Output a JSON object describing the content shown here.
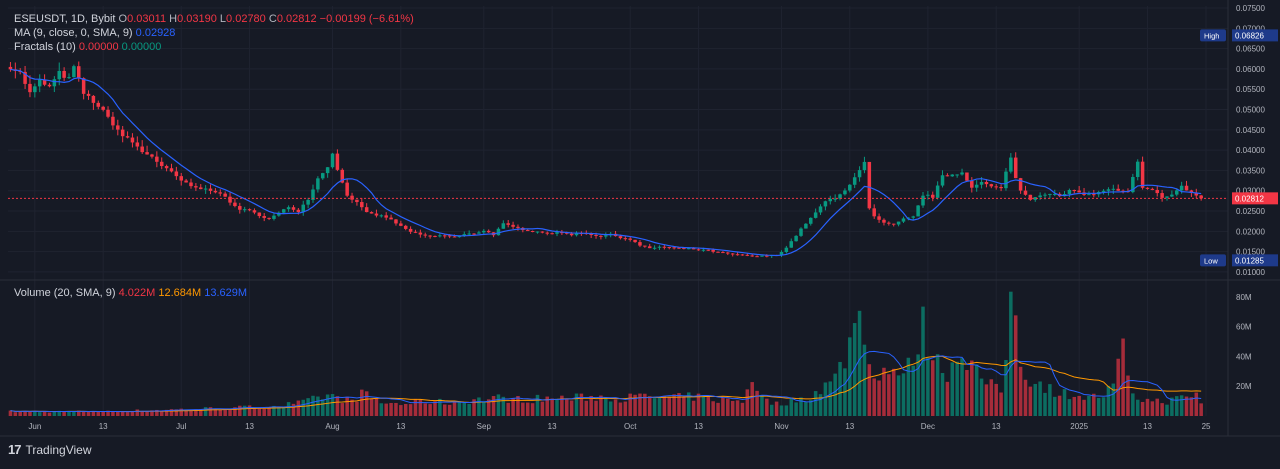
{
  "legend": {
    "symbol": "ESEUSDT, 1D, Bybit",
    "o_label": "O",
    "o_val": "0.03011",
    "h_label": "H",
    "h_val": "0.03190",
    "l_label": "L",
    "l_val": "0.02780",
    "c_label": "C",
    "c_val": "0.02812",
    "change": "−0.00199 (−6.61%)",
    "ma_label": "MA (9, close, 0, SMA, 9)",
    "ma_val": "0.02928",
    "fractals_label": "Fractals (10)",
    "fractals_up": "0.00000",
    "fractals_down": "0.00000",
    "volume_label": "Volume (20, SMA, 9)",
    "vol_val": "4.022M",
    "vol_sma20": "12.684M",
    "vol_sma9": "13.629M"
  },
  "price_axis": {
    "ticks": [
      "0.07500",
      "0.07000",
      "0.06500",
      "0.06000",
      "0.05500",
      "0.05000",
      "0.04500",
      "0.04000",
      "0.03500",
      "0.03000",
      "0.02500",
      "0.02000",
      "0.01500",
      "0.01000"
    ],
    "high_label": "High",
    "high_value": "0.06826",
    "low_label": "Low",
    "low_value": "0.01285",
    "last_value": "0.02812"
  },
  "volume_axis": {
    "ticks": [
      "80M",
      "60M",
      "40M",
      "20M"
    ]
  },
  "time_axis": {
    "labels": [
      "Jun",
      "13",
      "Jul",
      "13",
      "Aug",
      "13",
      "Sep",
      "13",
      "Oct",
      "13",
      "Nov",
      "13",
      "Dec",
      "13",
      "2025",
      "13",
      "25"
    ],
    "label_days": [
      5,
      19,
      35,
      49,
      66,
      80,
      97,
      111,
      127,
      141,
      158,
      172,
      188,
      202,
      219,
      233,
      245
    ]
  },
  "colors": {
    "up": "#089981",
    "down": "#f23645",
    "ma": "#2962ff",
    "vol_sma20": "#ff9800",
    "vol_sma9": "#2962ff",
    "bg": "#161a25",
    "grid": "#1f2330"
  },
  "footer": {
    "brand": "TradingView",
    "brand_mark": "17"
  },
  "chart_data": {
    "type": "candlestick",
    "title": "ESEUSDT, 1D, Bybit",
    "x_start": "2024-06-01",
    "price_range": [
      0.0085,
      0.0755
    ],
    "volume_range": [
      0,
      90
    ],
    "close_anchors": [
      [
        0,
        0.0605
      ],
      [
        2,
        0.059
      ],
      [
        4,
        0.054
      ],
      [
        6,
        0.057
      ],
      [
        8,
        0.0555
      ],
      [
        10,
        0.059
      ],
      [
        12,
        0.0575
      ],
      [
        13,
        0.0605
      ],
      [
        15,
        0.054
      ],
      [
        17,
        0.052
      ],
      [
        19,
        0.0495
      ],
      [
        21,
        0.0465
      ],
      [
        23,
        0.0435
      ],
      [
        25,
        0.042
      ],
      [
        27,
        0.0395
      ],
      [
        29,
        0.0385
      ],
      [
        31,
        0.036
      ],
      [
        33,
        0.0345
      ],
      [
        35,
        0.0325
      ],
      [
        37,
        0.031
      ],
      [
        39,
        0.0305
      ],
      [
        41,
        0.0302
      ],
      [
        43,
        0.0295
      ],
      [
        45,
        0.027
      ],
      [
        47,
        0.0255
      ],
      [
        49,
        0.025
      ],
      [
        51,
        0.024
      ],
      [
        53,
        0.023
      ],
      [
        55,
        0.0245
      ],
      [
        57,
        0.026
      ],
      [
        59,
        0.025
      ],
      [
        61,
        0.028
      ],
      [
        63,
        0.033
      ],
      [
        65,
        0.036
      ],
      [
        66,
        0.0395
      ],
      [
        67,
        0.035
      ],
      [
        69,
        0.029
      ],
      [
        71,
        0.027
      ],
      [
        73,
        0.0245
      ],
      [
        75,
        0.024
      ],
      [
        77,
        0.0235
      ],
      [
        79,
        0.022
      ],
      [
        81,
        0.0205
      ],
      [
        83,
        0.0195
      ],
      [
        85,
        0.0188
      ],
      [
        87,
        0.0188
      ],
      [
        89,
        0.019
      ],
      [
        91,
        0.0185
      ],
      [
        93,
        0.0192
      ],
      [
        95,
        0.0195
      ],
      [
        97,
        0.0202
      ],
      [
        99,
        0.0192
      ],
      [
        101,
        0.0218
      ],
      [
        103,
        0.021
      ],
      [
        105,
        0.0205
      ],
      [
        107,
        0.02
      ],
      [
        109,
        0.0198
      ],
      [
        111,
        0.0195
      ],
      [
        113,
        0.0197
      ],
      [
        115,
        0.0192
      ],
      [
        117,
        0.0197
      ],
      [
        119,
        0.0192
      ],
      [
        121,
        0.0188
      ],
      [
        123,
        0.0192
      ],
      [
        125,
        0.0185
      ],
      [
        127,
        0.018
      ],
      [
        129,
        0.0165
      ],
      [
        131,
        0.0158
      ],
      [
        133,
        0.0162
      ],
      [
        135,
        0.016
      ],
      [
        137,
        0.0158
      ],
      [
        139,
        0.0157
      ],
      [
        141,
        0.0155
      ],
      [
        143,
        0.0153
      ],
      [
        145,
        0.0148
      ],
      [
        147,
        0.0145
      ],
      [
        149,
        0.0142
      ],
      [
        151,
        0.014
      ],
      [
        153,
        0.0138
      ],
      [
        155,
        0.014
      ],
      [
        157,
        0.0141
      ],
      [
        159,
        0.016
      ],
      [
        161,
        0.019
      ],
      [
        163,
        0.022
      ],
      [
        165,
        0.0245
      ],
      [
        167,
        0.0275
      ],
      [
        169,
        0.028
      ],
      [
        171,
        0.03
      ],
      [
        173,
        0.0335
      ],
      [
        175,
        0.037
      ],
      [
        176,
        0.0255
      ],
      [
        177,
        0.0235
      ],
      [
        179,
        0.022
      ],
      [
        181,
        0.0215
      ],
      [
        183,
        0.023
      ],
      [
        185,
        0.0235
      ],
      [
        187,
        0.029
      ],
      [
        189,
        0.0285
      ],
      [
        191,
        0.0335
      ],
      [
        193,
        0.034
      ],
      [
        195,
        0.0345
      ],
      [
        197,
        0.031
      ],
      [
        199,
        0.032
      ],
      [
        201,
        0.031
      ],
      [
        203,
        0.0305
      ],
      [
        205,
        0.0385
      ],
      [
        206,
        0.033
      ],
      [
        207,
        0.03
      ],
      [
        209,
        0.028
      ],
      [
        211,
        0.029
      ],
      [
        213,
        0.0295
      ],
      [
        215,
        0.0285
      ],
      [
        217,
        0.03
      ],
      [
        219,
        0.0295
      ],
      [
        221,
        0.029
      ],
      [
        223,
        0.0295
      ],
      [
        225,
        0.0305
      ],
      [
        227,
        0.03
      ],
      [
        229,
        0.0295
      ],
      [
        231,
        0.037
      ],
      [
        232,
        0.0305
      ],
      [
        234,
        0.03
      ],
      [
        236,
        0.0285
      ],
      [
        238,
        0.029
      ],
      [
        240,
        0.031
      ],
      [
        242,
        0.0295
      ],
      [
        244,
        0.0281
      ]
    ],
    "volume_anchors": [
      [
        0,
        3
      ],
      [
        10,
        3
      ],
      [
        20,
        3
      ],
      [
        30,
        4
      ],
      [
        40,
        5
      ],
      [
        50,
        6
      ],
      [
        55,
        7
      ],
      [
        60,
        9
      ],
      [
        63,
        12
      ],
      [
        65,
        14
      ],
      [
        67,
        12
      ],
      [
        70,
        10
      ],
      [
        72,
        15
      ],
      [
        74,
        12
      ],
      [
        76,
        9
      ],
      [
        80,
        8
      ],
      [
        85,
        10
      ],
      [
        90,
        9
      ],
      [
        95,
        11
      ],
      [
        100,
        12
      ],
      [
        105,
        11
      ],
      [
        110,
        12
      ],
      [
        115,
        12
      ],
      [
        120,
        13
      ],
      [
        125,
        12
      ],
      [
        130,
        13
      ],
      [
        135,
        12
      ],
      [
        140,
        13
      ],
      [
        145,
        11
      ],
      [
        150,
        10
      ],
      [
        152,
        27
      ],
      [
        154,
        12
      ],
      [
        157,
        8
      ],
      [
        160,
        10
      ],
      [
        163,
        12
      ],
      [
        166,
        18
      ],
      [
        169,
        25
      ],
      [
        171,
        40
      ],
      [
        173,
        60
      ],
      [
        174,
        82
      ],
      [
        175,
        45
      ],
      [
        176,
        40
      ],
      [
        178,
        25
      ],
      [
        180,
        35
      ],
      [
        183,
        25
      ],
      [
        185,
        40
      ],
      [
        187,
        60
      ],
      [
        188,
        50
      ],
      [
        190,
        35
      ],
      [
        192,
        30
      ],
      [
        195,
        45
      ],
      [
        197,
        35
      ],
      [
        199,
        25
      ],
      [
        201,
        20
      ],
      [
        203,
        15
      ],
      [
        204,
        45
      ],
      [
        205,
        75
      ],
      [
        206,
        70
      ],
      [
        207,
        35
      ],
      [
        209,
        25
      ],
      [
        212,
        20
      ],
      [
        215,
        15
      ],
      [
        218,
        15
      ],
      [
        221,
        12
      ],
      [
        224,
        14
      ],
      [
        226,
        20
      ],
      [
        228,
        45
      ],
      [
        229,
        22
      ],
      [
        231,
        12
      ],
      [
        234,
        10
      ],
      [
        237,
        10
      ],
      [
        240,
        12
      ],
      [
        243,
        14
      ],
      [
        245,
        4
      ]
    ],
    "ma_period": 9,
    "volume_sma_periods": [
      20,
      9
    ]
  }
}
